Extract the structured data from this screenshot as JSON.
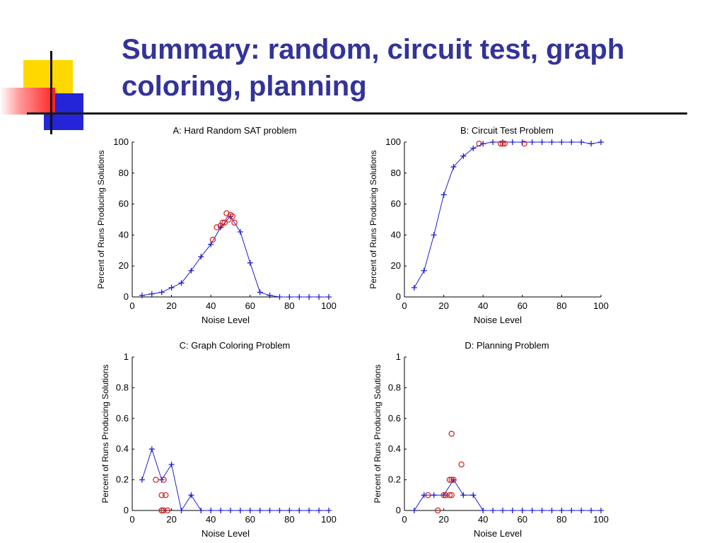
{
  "slide": {
    "title_line1": "Summary: random, circuit test, graph",
    "title_line2": "coloring, planning",
    "accent_colors": {
      "yellow": "#ffd800",
      "red": "#ff3030",
      "blue": "#2424d8",
      "title": "#33339a"
    }
  },
  "chart_data": [
    {
      "type": "line",
      "title": "A: Hard Random SAT problem",
      "xlabel": "Noise Level",
      "ylabel": "Percent of Runs Producing Solutions",
      "xlim": [
        0,
        100
      ],
      "ylim": [
        0,
        100
      ],
      "xticks": [
        "0",
        "20",
        "40",
        "60",
        "80",
        "100"
      ],
      "yticks": [
        "0",
        "20",
        "40",
        "60",
        "80",
        "100"
      ],
      "series": [
        {
          "marker": "plus-line",
          "color": "#1f1fcf",
          "x": [
            5,
            10,
            15,
            20,
            25,
            30,
            35,
            40,
            45,
            50,
            55,
            60,
            65,
            70,
            75,
            80,
            85,
            90,
            95,
            100
          ],
          "y": [
            1,
            2,
            3,
            6,
            9,
            17,
            26,
            34,
            45,
            52,
            42,
            22,
            3,
            1,
            0,
            0,
            0,
            0,
            0,
            0
          ]
        },
        {
          "marker": "circle",
          "color": "#d02020",
          "x": [
            41,
            43,
            45,
            46,
            47,
            48,
            49,
            50,
            51,
            52
          ],
          "y": [
            37,
            45,
            46,
            48,
            48,
            54,
            50,
            53,
            52,
            48
          ]
        }
      ]
    },
    {
      "type": "line",
      "title": "B: Circuit Test Problem",
      "xlabel": "Noise Level",
      "ylabel": "Percent of Runs Producing Solutions",
      "xlim": [
        0,
        100
      ],
      "ylim": [
        0,
        100
      ],
      "xticks": [
        "0",
        "20",
        "40",
        "60",
        "80",
        "100"
      ],
      "yticks": [
        "0",
        "20",
        "40",
        "60",
        "80",
        "100"
      ],
      "series": [
        {
          "marker": "plus-line",
          "color": "#1f1fcf",
          "x": [
            5,
            10,
            15,
            20,
            25,
            30,
            35,
            40,
            45,
            50,
            55,
            60,
            65,
            70,
            75,
            80,
            85,
            90,
            95,
            100
          ],
          "y": [
            6,
            17,
            40,
            66,
            84,
            91,
            96,
            99,
            100,
            100,
            100,
            100,
            100,
            100,
            100,
            100,
            100,
            100,
            99,
            100
          ]
        },
        {
          "marker": "circle",
          "color": "#d02020",
          "x": [
            38,
            49,
            50,
            51,
            61
          ],
          "y": [
            99,
            99,
            99,
            99,
            99
          ]
        }
      ]
    },
    {
      "type": "line",
      "title": "C: Graph Coloring Problem",
      "xlabel": "Noise Level",
      "ylabel": "Percent of Runs Producing Solutions",
      "xlim": [
        0,
        100
      ],
      "ylim": [
        0,
        1
      ],
      "xticks": [
        "0",
        "20",
        "40",
        "60",
        "80",
        "100"
      ],
      "yticks": [
        "0",
        "0.2",
        "0.4",
        "0.6",
        "0.8",
        "1"
      ],
      "series": [
        {
          "marker": "plus-line",
          "color": "#1f1fcf",
          "x": [
            5,
            10,
            15,
            20,
            25,
            30,
            35,
            40,
            45,
            50,
            55,
            60,
            65,
            70,
            75,
            80,
            85,
            90,
            95,
            100
          ],
          "y": [
            0.2,
            0.4,
            0.2,
            0.3,
            0,
            0.1,
            0,
            0,
            0,
            0,
            0,
            0,
            0,
            0,
            0,
            0,
            0,
            0,
            0,
            0
          ]
        },
        {
          "marker": "circle",
          "color": "#d02020",
          "x": [
            12,
            15,
            15,
            15,
            16,
            16,
            17,
            18
          ],
          "y": [
            0.2,
            0,
            0,
            0.1,
            0.2,
            0,
            0.1,
            0
          ]
        }
      ]
    },
    {
      "type": "line",
      "title": "D: Planning Problem",
      "xlabel": "Noise Level",
      "ylabel": "Percent of Runs Producing Solutions",
      "xlim": [
        0,
        100
      ],
      "ylim": [
        0,
        1
      ],
      "xticks": [
        "0",
        "20",
        "40",
        "60",
        "80",
        "100"
      ],
      "yticks": [
        "0",
        "0.2",
        "0.4",
        "0.6",
        "0.8",
        "1"
      ],
      "series": [
        {
          "marker": "plus-line",
          "color": "#1f1fcf",
          "x": [
            5,
            10,
            15,
            20,
            25,
            30,
            35,
            40,
            45,
            50,
            55,
            60,
            65,
            70,
            75,
            80,
            85,
            90,
            95,
            100
          ],
          "y": [
            0,
            0.1,
            0.1,
            0.1,
            0.2,
            0.1,
            0.1,
            0,
            0,
            0,
            0,
            0,
            0,
            0,
            0,
            0,
            0,
            0,
            0,
            0
          ]
        },
        {
          "marker": "circle",
          "color": "#d02020",
          "x": [
            12,
            17,
            20,
            21,
            23,
            23,
            24,
            24,
            24,
            25,
            29
          ],
          "y": [
            0.1,
            0,
            0.1,
            0.1,
            0.1,
            0.2,
            0.5,
            0.1,
            0.2,
            0.2,
            0.3
          ]
        }
      ]
    }
  ]
}
